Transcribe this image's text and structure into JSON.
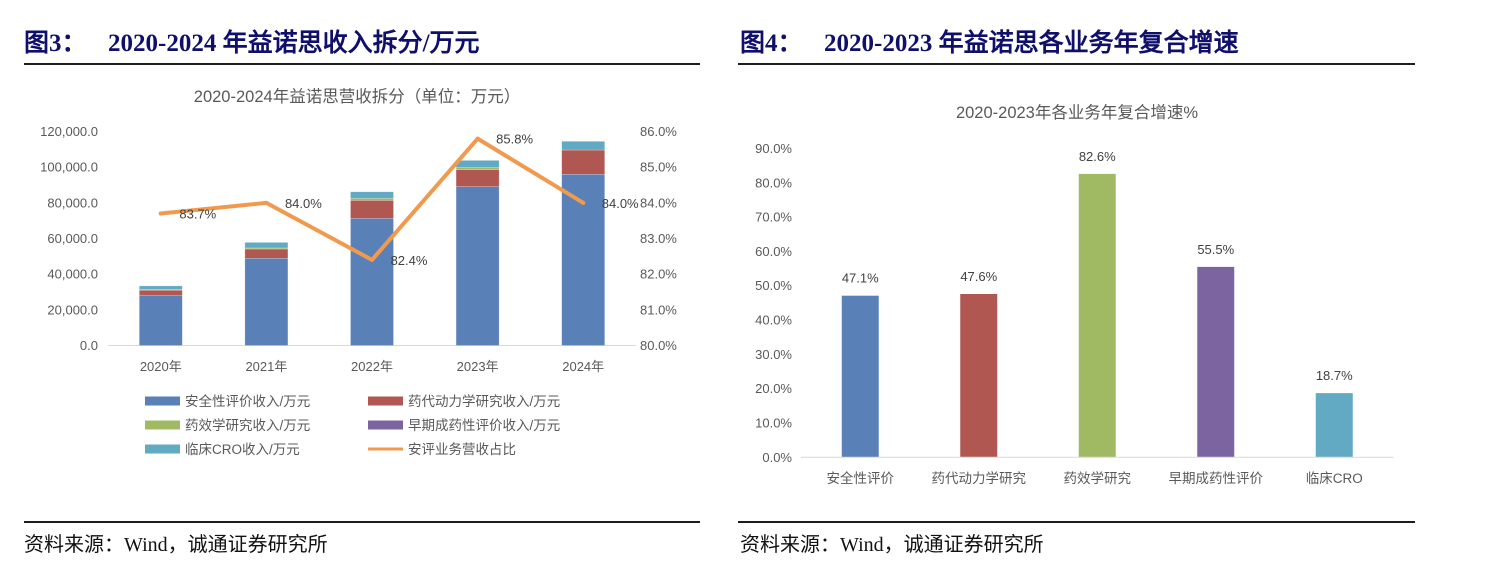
{
  "figures": [
    {
      "label": "图3：",
      "title": "2020-2024 年益诺思收入拆分/万元",
      "source": "资料来源：Wind，诚通证券研究所"
    },
    {
      "label": "图4：",
      "title": "2020-2023 年益诺思各业务年复合增速",
      "source": "资料来源：Wind，诚通证券研究所"
    }
  ],
  "chart_data": [
    {
      "type": "bar",
      "stacked": true,
      "title": "2020-2024年益诺思营收拆分（单位：万元）",
      "categories": [
        "2020年",
        "2021年",
        "2022年",
        "2023年",
        "2024年"
      ],
      "xlabel": "",
      "ylabel": "",
      "ylim": [
        0,
        120000
      ],
      "y_ticks": [
        "0.0",
        "20,000.0",
        "40,000.0",
        "60,000.0",
        "80,000.0",
        "100,000.0",
        "120,000.0"
      ],
      "y2lim": [
        80,
        86
      ],
      "y2_ticks": [
        "80.0%",
        "81.0%",
        "82.0%",
        "83.0%",
        "84.0%",
        "85.0%",
        "86.0%"
      ],
      "grid": false,
      "legend": "bottom",
      "series": [
        {
          "name": "安全性评价收入/万元",
          "type": "bar",
          "axis": "left",
          "color": "#5A80B8",
          "values": [
            28200,
            48900,
            71300,
            89100,
            96000
          ]
        },
        {
          "name": "药代动力学研究收入/万元",
          "type": "bar",
          "axis": "left",
          "color": "#B15752",
          "values": [
            2800,
            5200,
            10100,
            9500,
            13600
          ]
        },
        {
          "name": "药效学研究收入/万元",
          "type": "bar",
          "axis": "left",
          "color": "#A0BA64",
          "values": [
            500,
            600,
            1100,
            1300,
            0
          ]
        },
        {
          "name": "早期成药性评价收入/万元",
          "type": "bar",
          "axis": "left",
          "color": "#7B64A0",
          "values": [
            0,
            0,
            0,
            0,
            0
          ]
        },
        {
          "name": "临床CRO收入/万元",
          "type": "bar",
          "axis": "left",
          "color": "#62A9C4",
          "values": [
            1900,
            3100,
            3700,
            3900,
            4900
          ]
        },
        {
          "name": "安评业务营收占比",
          "type": "line",
          "axis": "right",
          "color": "#F09A4E",
          "values": [
            83.7,
            84.0,
            82.4,
            85.8,
            84.0
          ],
          "labels": [
            "83.7%",
            "84.0%",
            "82.4%",
            "85.8%",
            "84.0%"
          ]
        }
      ]
    },
    {
      "type": "bar",
      "title": "2020-2023年各业务年复合增速%",
      "categories": [
        "安全性评价",
        "药代动力学研究",
        "药效学研究",
        "早期成药性评价",
        "临床CRO"
      ],
      "values": [
        47.1,
        47.6,
        82.6,
        55.5,
        18.7
      ],
      "labels": [
        "47.1%",
        "47.6%",
        "82.6%",
        "55.5%",
        "18.7%"
      ],
      "colors": [
        "#5A80B8",
        "#B15752",
        "#A0BA64",
        "#7B64A0",
        "#62A9C4"
      ],
      "xlabel": "",
      "ylabel": "",
      "ylim": [
        0,
        90
      ],
      "y_ticks": [
        "0.0%",
        "10.0%",
        "20.0%",
        "30.0%",
        "40.0%",
        "50.0%",
        "60.0%",
        "70.0%",
        "80.0%",
        "90.0%"
      ],
      "grid": false,
      "legend": "none"
    }
  ]
}
